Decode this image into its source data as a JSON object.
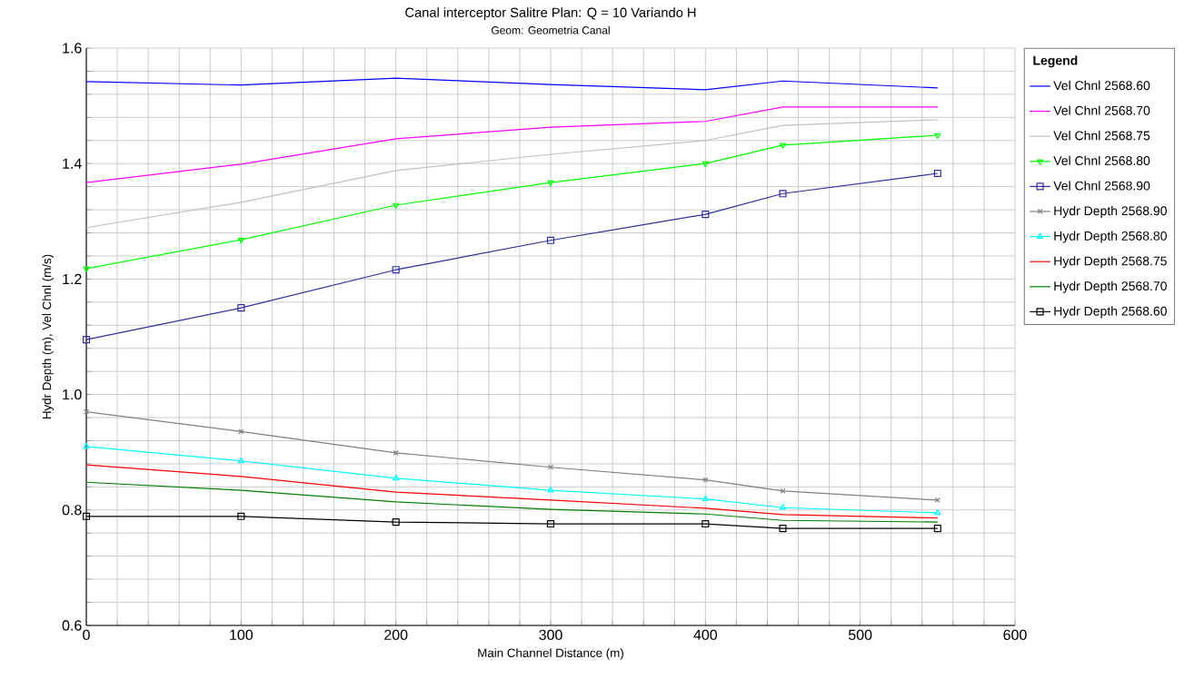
{
  "chart_data": {
    "type": "line",
    "title": "Canal interceptor Salitre        Plan: Q = 10 Variando H",
    "subtitle": "Geom: Geometria Canal",
    "xlabel": "Main Channel Distance (m)",
    "ylabel": "Hydr Depth (m), Vel Chnl (m/s)",
    "legend_title": "Legend",
    "x": [
      0,
      100,
      200,
      300,
      400,
      450,
      550
    ],
    "series": [
      {
        "name": "Vel Chnl 2568.60",
        "color": "#0000ff",
        "marker": "none",
        "values": [
          1.542,
          1.536,
          1.548,
          1.537,
          1.528,
          1.543,
          1.531
        ]
      },
      {
        "name": "Vel Chnl 2568.70",
        "color": "#ff00ff",
        "marker": "none",
        "values": [
          1.367,
          1.399,
          1.443,
          1.463,
          1.473,
          1.498,
          1.498
        ]
      },
      {
        "name": "Vel Chnl 2568.75",
        "color": "#c0c0c0",
        "marker": "none",
        "values": [
          1.289,
          1.333,
          1.388,
          1.416,
          1.44,
          1.466,
          1.476
        ]
      },
      {
        "name": "Vel Chnl 2568.80",
        "color": "#00ff00",
        "marker": "triangle-down",
        "values": [
          1.218,
          1.268,
          1.328,
          1.367,
          1.4,
          1.432,
          1.449
        ]
      },
      {
        "name": "Vel Chnl 2568.90",
        "color": "#2e2e9e",
        "marker": "square",
        "values": [
          1.095,
          1.15,
          1.216,
          1.267,
          1.312,
          1.348,
          1.383
        ]
      },
      {
        "name": "Hydr Depth 2568.90",
        "color": "#808080",
        "marker": "cross",
        "values": [
          0.97,
          0.936,
          0.899,
          0.874,
          0.852,
          0.833,
          0.817
        ]
      },
      {
        "name": "Hydr Depth 2568.80",
        "color": "#00ffff",
        "marker": "triangle",
        "values": [
          0.91,
          0.885,
          0.855,
          0.834,
          0.819,
          0.804,
          0.795
        ]
      },
      {
        "name": "Hydr Depth 2568.75",
        "color": "#ff0000",
        "marker": "none",
        "values": [
          0.878,
          0.858,
          0.831,
          0.817,
          0.803,
          0.792,
          0.786
        ]
      },
      {
        "name": "Hydr Depth 2568.70",
        "color": "#008000",
        "marker": "none",
        "values": [
          0.848,
          0.834,
          0.814,
          0.801,
          0.793,
          0.782,
          0.779
        ]
      },
      {
        "name": "Hydr Depth 2568.60",
        "color": "#000000",
        "marker": "square",
        "values": [
          0.789,
          0.789,
          0.779,
          0.776,
          0.776,
          0.768,
          0.768
        ]
      }
    ],
    "xlim": [
      0,
      600
    ],
    "xticks": [
      0,
      {
        "value": 20,
        "label": null
      },
      {
        "value": 40,
        "label": null
      },
      {
        "value": 60,
        "label": null
      },
      {
        "value": 80,
        "label": null
      },
      100,
      {
        "value": 120,
        "label": null
      },
      {
        "value": 140,
        "label": null
      },
      {
        "value": 160,
        "label": null
      },
      {
        "value": 180,
        "label": null
      },
      200,
      {
        "value": 220,
        "label": null
      },
      {
        "value": 240,
        "label": null
      },
      {
        "value": 260,
        "label": null
      },
      {
        "value": 280,
        "label": null
      },
      300,
      {
        "value": 320,
        "label": null
      },
      {
        "value": 340,
        "label": null
      },
      {
        "value": 360,
        "label": null
      },
      {
        "value": 380,
        "label": null
      },
      400,
      {
        "value": 420,
        "label": null
      },
      {
        "value": 440,
        "label": null
      },
      {
        "value": 460,
        "label": null
      },
      {
        "value": 480,
        "label": null
      },
      500,
      {
        "value": 520,
        "label": null
      },
      {
        "value": 540,
        "label": null
      },
      {
        "value": 560,
        "label": null
      },
      {
        "value": 580,
        "label": null
      },
      600
    ],
    "ylim": [
      0.6,
      1.6
    ],
    "yticks": [
      0.6,
      {
        "value": 0.64,
        "label": null
      },
      {
        "value": 0.68,
        "label": null
      },
      {
        "value": 0.72,
        "label": null
      },
      {
        "value": 0.76,
        "label": null
      },
      0.8,
      {
        "value": 0.84,
        "label": null
      },
      {
        "value": 0.88,
        "label": null
      },
      {
        "value": 0.92,
        "label": null
      },
      {
        "value": 0.96,
        "label": null
      },
      {
        "value": 1.0,
        "label": "1.0"
      },
      {
        "value": 1.04,
        "label": null
      },
      {
        "value": 1.08,
        "label": null
      },
      {
        "value": 1.12,
        "label": null
      },
      {
        "value": 1.16,
        "label": null
      },
      1.2,
      {
        "value": 1.24,
        "label": null
      },
      {
        "value": 1.28,
        "label": null
      },
      {
        "value": 1.32,
        "label": null
      },
      {
        "value": 1.36,
        "label": null
      },
      1.4,
      {
        "value": 1.44,
        "label": null
      },
      {
        "value": 1.48,
        "label": null
      },
      {
        "value": 1.52,
        "label": null
      },
      {
        "value": 1.56,
        "label": null
      },
      1.6
    ],
    "grid": true,
    "legend": "right"
  }
}
